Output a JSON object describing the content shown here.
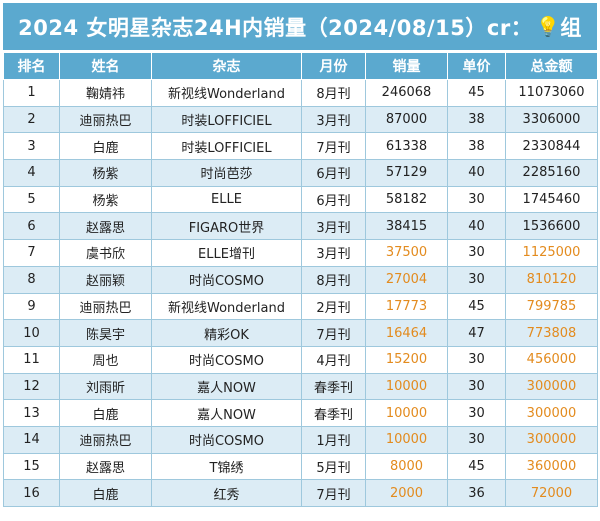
{
  "title": {
    "text": "2024 女明星杂志24H内销量（2024/08/15）cr：",
    "bulb_icon": "lightbulb-icon",
    "suffix": "组"
  },
  "colors": {
    "header_blue": "#5ba9cf",
    "row_alt": "#dcecf5",
    "highlight_orange": "#e38b1e"
  },
  "table": {
    "headers": [
      "排名",
      "姓名",
      "杂志",
      "月份",
      "销量",
      "单价",
      "总金额"
    ],
    "rows": [
      {
        "rank": "1",
        "name": "鞠婧祎",
        "magazine": "新视线Wonderland",
        "month": "8月刊",
        "sales": "246068",
        "price": "45",
        "total": "11073060",
        "highlight": false
      },
      {
        "rank": "2",
        "name": "迪丽热巴",
        "magazine": "时装LOFFICIEL",
        "month": "3月刊",
        "sales": "87000",
        "price": "38",
        "total": "3306000",
        "highlight": false
      },
      {
        "rank": "3",
        "name": "白鹿",
        "magazine": "时装LOFFICIEL",
        "month": "7月刊",
        "sales": "61338",
        "price": "38",
        "total": "2330844",
        "highlight": false
      },
      {
        "rank": "4",
        "name": "杨紫",
        "magazine": "时尚芭莎",
        "month": "6月刊",
        "sales": "57129",
        "price": "40",
        "total": "2285160",
        "highlight": false
      },
      {
        "rank": "5",
        "name": "杨紫",
        "magazine": "ELLE",
        "month": "6月刊",
        "sales": "58182",
        "price": "30",
        "total": "1745460",
        "highlight": false
      },
      {
        "rank": "6",
        "name": "赵露思",
        "magazine": "FIGARO世界",
        "month": "3月刊",
        "sales": "38415",
        "price": "40",
        "total": "1536600",
        "highlight": false
      },
      {
        "rank": "7",
        "name": "虞书欣",
        "magazine": "ELLE增刊",
        "month": "3月刊",
        "sales": "37500",
        "price": "30",
        "total": "1125000",
        "highlight": true
      },
      {
        "rank": "8",
        "name": "赵丽颖",
        "magazine": "时尚COSMO",
        "month": "8月刊",
        "sales": "27004",
        "price": "30",
        "total": "810120",
        "highlight": true
      },
      {
        "rank": "9",
        "name": "迪丽热巴",
        "magazine": "新视线Wonderland",
        "month": "2月刊",
        "sales": "17773",
        "price": "45",
        "total": "799785",
        "highlight": true
      },
      {
        "rank": "10",
        "name": "陈昊宇",
        "magazine": "精彩OK",
        "month": "7月刊",
        "sales": "16464",
        "price": "47",
        "total": "773808",
        "highlight": true
      },
      {
        "rank": "11",
        "name": "周也",
        "magazine": "时尚COSMO",
        "month": "4月刊",
        "sales": "15200",
        "price": "30",
        "total": "456000",
        "highlight": true
      },
      {
        "rank": "12",
        "name": "刘雨昕",
        "magazine": "嘉人NOW",
        "month": "春季刊",
        "sales": "10000",
        "price": "30",
        "total": "300000",
        "highlight": true
      },
      {
        "rank": "13",
        "name": "白鹿",
        "magazine": "嘉人NOW",
        "month": "春季刊",
        "sales": "10000",
        "price": "30",
        "total": "300000",
        "highlight": true
      },
      {
        "rank": "14",
        "name": "迪丽热巴",
        "magazine": "时尚COSMO",
        "month": "1月刊",
        "sales": "10000",
        "price": "30",
        "total": "300000",
        "highlight": true
      },
      {
        "rank": "15",
        "name": "赵露思",
        "magazine": "T锦绣",
        "month": "5月刊",
        "sales": "8000",
        "price": "45",
        "total": "360000",
        "highlight": true
      },
      {
        "rank": "16",
        "name": "白鹿",
        "magazine": "红秀",
        "month": "7月刊",
        "sales": "2000",
        "price": "36",
        "total": "72000",
        "highlight": true
      }
    ]
  }
}
